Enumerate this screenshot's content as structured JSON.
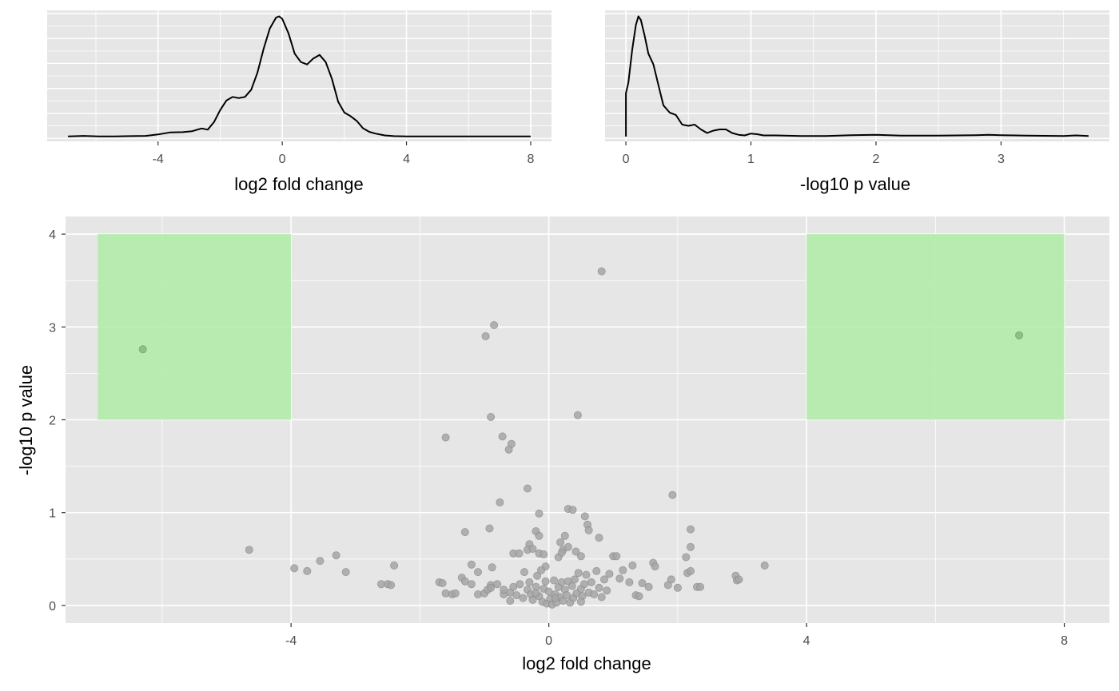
{
  "colors": {
    "panel_bg": "#e6e6e6",
    "grid": "#ffffff",
    "density_line": "#000000",
    "point": "#a6a6a6",
    "point_stroke": "#8c8c8c",
    "highlight": "#b3ecab",
    "highlight_point": "#8fbf88"
  },
  "chart_data": [
    {
      "type": "area",
      "xlabel": "log2 fold change",
      "ylabel": "",
      "xlim": [
        -6.9,
        8.0
      ],
      "x_ticks": [
        -4,
        0,
        4,
        8
      ],
      "y_ticks": [],
      "grid": true,
      "series": [
        {
          "x": [
            -6.9,
            -6.4,
            -5.9,
            -5.4,
            -4.9,
            -4.4,
            -4.0,
            -3.6,
            -3.2,
            -2.9,
            -2.6,
            -2.4,
            -2.2,
            -2.0,
            -1.8,
            -1.6,
            -1.4,
            -1.2,
            -1.0,
            -0.8,
            -0.6,
            -0.4,
            -0.2,
            -0.1,
            0.0,
            0.2,
            0.4,
            0.6,
            0.8,
            1.0,
            1.2,
            1.4,
            1.6,
            1.8,
            2.0,
            2.2,
            2.4,
            2.6,
            2.8,
            3.0,
            3.3,
            3.6,
            4.0,
            5.0,
            6.0,
            7.0,
            8.0
          ],
          "y": [
            0.002,
            0.006,
            0.001,
            0.002,
            0.004,
            0.006,
            0.018,
            0.035,
            0.037,
            0.045,
            0.068,
            0.058,
            0.12,
            0.22,
            0.3,
            0.33,
            0.32,
            0.33,
            0.39,
            0.53,
            0.73,
            0.9,
            0.99,
            1.0,
            0.98,
            0.86,
            0.69,
            0.62,
            0.6,
            0.65,
            0.68,
            0.62,
            0.48,
            0.29,
            0.2,
            0.17,
            0.13,
            0.07,
            0.04,
            0.025,
            0.01,
            0.004,
            0.002,
            0.001,
            0.001,
            0.002,
            0.001
          ]
        }
      ]
    },
    {
      "type": "area",
      "xlabel": "-log10 p value",
      "ylabel": "",
      "xlim": [
        0,
        3.7
      ],
      "x_ticks": [
        0,
        1,
        2,
        3
      ],
      "y_ticks": [],
      "grid": true,
      "series": [
        {
          "x": [
            0.0,
            0.0,
            0.02,
            0.05,
            0.08,
            0.1,
            0.12,
            0.15,
            0.18,
            0.22,
            0.26,
            0.3,
            0.35,
            0.4,
            0.45,
            0.5,
            0.55,
            0.6,
            0.65,
            0.7,
            0.75,
            0.8,
            0.85,
            0.9,
            0.95,
            1.0,
            1.05,
            1.1,
            1.2,
            1.4,
            1.6,
            1.8,
            2.0,
            2.2,
            2.5,
            2.8,
            2.9,
            3.0,
            3.2,
            3.5,
            3.6,
            3.7
          ],
          "y": [
            0.0,
            0.36,
            0.45,
            0.72,
            0.93,
            1.0,
            0.97,
            0.84,
            0.69,
            0.6,
            0.43,
            0.26,
            0.2,
            0.18,
            0.1,
            0.09,
            0.1,
            0.06,
            0.03,
            0.05,
            0.06,
            0.06,
            0.03,
            0.015,
            0.01,
            0.025,
            0.02,
            0.01,
            0.01,
            0.005,
            0.005,
            0.012,
            0.015,
            0.008,
            0.008,
            0.012,
            0.015,
            0.012,
            0.008,
            0.005,
            0.01,
            0.005
          ]
        }
      ]
    },
    {
      "type": "scatter",
      "xlabel": "log2 fold change",
      "ylabel": "-log10 p value",
      "xlim": [
        -7.5,
        8.7
      ],
      "ylim": [
        -0.19,
        4.19
      ],
      "x_ticks": [
        -4,
        0,
        4,
        8
      ],
      "y_ticks": [
        0,
        1,
        2,
        3,
        4
      ],
      "grid": true,
      "highlight_regions": [
        {
          "x": [
            -7.0,
            -4.0
          ],
          "y": [
            2.0,
            4.0
          ]
        },
        {
          "x": [
            4.0,
            8.0
          ],
          "y": [
            2.0,
            4.0
          ]
        }
      ],
      "highlighted_points": [
        {
          "x": -6.3,
          "y": 2.76
        },
        {
          "x": 7.3,
          "y": 2.91
        }
      ],
      "points": [
        [
          0.82,
          3.6
        ],
        [
          -0.85,
          3.02
        ],
        [
          -0.98,
          2.9
        ],
        [
          -0.9,
          2.03
        ],
        [
          0.45,
          2.05
        ],
        [
          -1.6,
          1.81
        ],
        [
          -0.72,
          1.82
        ],
        [
          -0.58,
          1.74
        ],
        [
          -0.62,
          1.68
        ],
        [
          -0.33,
          1.26
        ],
        [
          1.92,
          1.19
        ],
        [
          -0.76,
          1.11
        ],
        [
          -0.15,
          0.99
        ],
        [
          0.3,
          1.04
        ],
        [
          0.37,
          1.03
        ],
        [
          0.56,
          0.96
        ],
        [
          0.6,
          0.87
        ],
        [
          0.62,
          0.81
        ],
        [
          -0.92,
          0.83
        ],
        [
          -1.3,
          0.79
        ],
        [
          -0.2,
          0.8
        ],
        [
          -0.15,
          0.75
        ],
        [
          0.25,
          0.75
        ],
        [
          0.78,
          0.73
        ],
        [
          2.2,
          0.82
        ],
        [
          2.2,
          0.63
        ],
        [
          0.18,
          0.68
        ],
        [
          0.22,
          0.6
        ],
        [
          0.3,
          0.63
        ],
        [
          -0.3,
          0.66
        ],
        [
          0.15,
          0.52
        ],
        [
          0.2,
          0.57
        ],
        [
          0.5,
          0.53
        ],
        [
          -0.55,
          0.56
        ],
        [
          -0.46,
          0.56
        ],
        [
          -0.33,
          0.6
        ],
        [
          -0.25,
          0.61
        ],
        [
          -0.15,
          0.56
        ],
        [
          -0.08,
          0.55
        ],
        [
          -0.05,
          0.42
        ],
        [
          0.42,
          0.58
        ],
        [
          1.0,
          0.53
        ],
        [
          1.05,
          0.53
        ],
        [
          2.13,
          0.52
        ],
        [
          1.62,
          0.46
        ],
        [
          1.65,
          0.42
        ],
        [
          1.3,
          0.43
        ],
        [
          -4.65,
          0.6
        ],
        [
          -3.3,
          0.54
        ],
        [
          -3.55,
          0.48
        ],
        [
          -3.95,
          0.4
        ],
        [
          -3.75,
          0.37
        ],
        [
          -3.15,
          0.36
        ],
        [
          -2.4,
          0.43
        ],
        [
          -2.6,
          0.23
        ],
        [
          -2.5,
          0.23
        ],
        [
          -2.45,
          0.22
        ],
        [
          -1.7,
          0.25
        ],
        [
          -1.65,
          0.24
        ],
        [
          -1.2,
          0.44
        ],
        [
          -0.88,
          0.41
        ],
        [
          -1.1,
          0.36
        ],
        [
          -1.35,
          0.3
        ],
        [
          -1.3,
          0.26
        ],
        [
          -1.2,
          0.23
        ],
        [
          -1.6,
          0.13
        ],
        [
          -1.5,
          0.12
        ],
        [
          -1.45,
          0.13
        ],
        [
          -1.1,
          0.12
        ],
        [
          -1.0,
          0.13
        ],
        [
          -0.95,
          0.17
        ],
        [
          -0.9,
          0.22
        ],
        [
          -0.8,
          0.23
        ],
        [
          -0.7,
          0.12
        ],
        [
          -0.6,
          0.14
        ],
        [
          -0.55,
          0.2
        ],
        [
          -0.5,
          0.11
        ],
        [
          -0.45,
          0.23
        ],
        [
          -0.4,
          0.08
        ],
        [
          -0.38,
          0.36
        ],
        [
          -0.33,
          0.17
        ],
        [
          -0.3,
          0.25
        ],
        [
          -0.28,
          0.12
        ],
        [
          -0.25,
          0.06
        ],
        [
          -0.2,
          0.2
        ],
        [
          -0.18,
          0.32
        ],
        [
          -0.15,
          0.1
        ],
        [
          -0.12,
          0.38
        ],
        [
          -0.1,
          0.04
        ],
        [
          -0.08,
          0.18
        ],
        [
          -0.05,
          0.26
        ],
        [
          -0.03,
          0.02
        ],
        [
          0.0,
          0.15
        ],
        [
          0.02,
          0.07
        ],
        [
          0.05,
          0.01
        ],
        [
          0.08,
          0.27
        ],
        [
          0.1,
          0.12
        ],
        [
          0.12,
          0.03
        ],
        [
          0.15,
          0.2
        ],
        [
          0.18,
          0.09
        ],
        [
          0.2,
          0.25
        ],
        [
          0.22,
          0.05
        ],
        [
          0.25,
          0.17
        ],
        [
          0.28,
          0.11
        ],
        [
          0.3,
          0.26
        ],
        [
          0.33,
          0.03
        ],
        [
          0.36,
          0.21
        ],
        [
          0.38,
          0.08
        ],
        [
          0.4,
          0.28
        ],
        [
          0.43,
          0.13
        ],
        [
          0.46,
          0.35
        ],
        [
          0.5,
          0.18
        ],
        [
          0.52,
          0.1
        ],
        [
          0.55,
          0.23
        ],
        [
          0.58,
          0.33
        ],
        [
          0.62,
          0.14
        ],
        [
          0.66,
          0.25
        ],
        [
          0.7,
          0.12
        ],
        [
          0.74,
          0.37
        ],
        [
          0.78,
          0.19
        ],
        [
          0.82,
          0.09
        ],
        [
          0.86,
          0.28
        ],
        [
          0.9,
          0.16
        ],
        [
          0.94,
          0.34
        ],
        [
          1.1,
          0.29
        ],
        [
          1.15,
          0.38
        ],
        [
          1.25,
          0.25
        ],
        [
          1.35,
          0.11
        ],
        [
          1.4,
          0.1
        ],
        [
          1.45,
          0.24
        ],
        [
          1.55,
          0.2
        ],
        [
          1.85,
          0.22
        ],
        [
          1.9,
          0.28
        ],
        [
          2.0,
          0.19
        ],
        [
          2.15,
          0.35
        ],
        [
          2.2,
          0.37
        ],
        [
          2.3,
          0.2
        ],
        [
          2.35,
          0.2
        ],
        [
          2.9,
          0.32
        ],
        [
          2.92,
          0.27
        ],
        [
          2.95,
          0.28
        ],
        [
          3.35,
          0.43
        ],
        [
          -0.9,
          0.19
        ],
        [
          -0.7,
          0.17
        ],
        [
          -0.2,
          0.13
        ],
        [
          0.1,
          0.08
        ],
        [
          0.5,
          0.04
        ],
        [
          -0.6,
          0.05
        ]
      ]
    }
  ]
}
